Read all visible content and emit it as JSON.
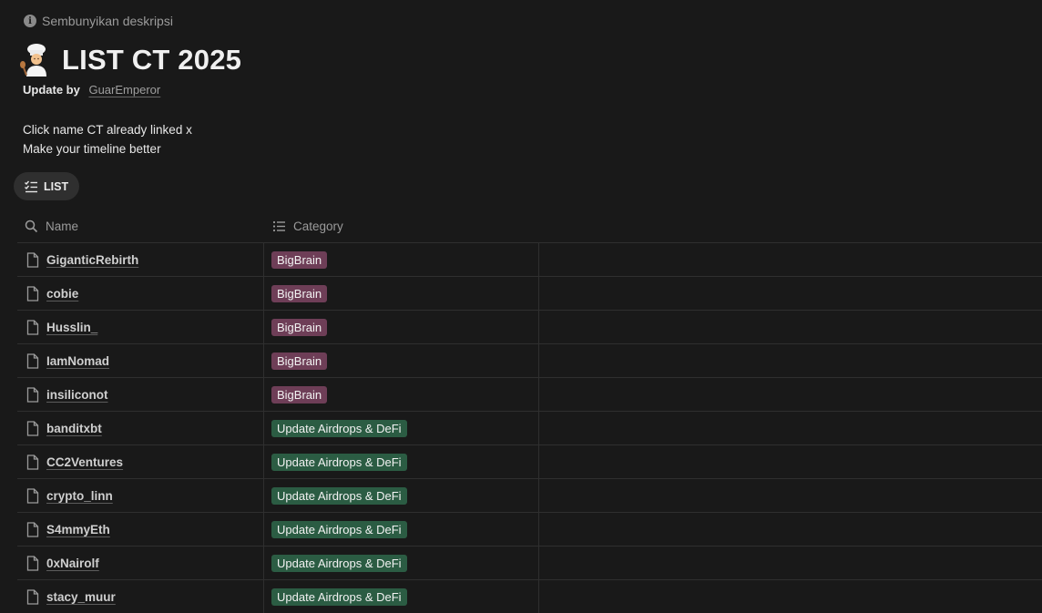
{
  "header": {
    "hide_description": "Sembunyikan deskripsi",
    "title": "LIST CT 2025",
    "update_by_label": "Update by",
    "update_by_author": "GuarEmperor",
    "description_lines": [
      "Click name CT already linked x",
      "Make your timeline better"
    ]
  },
  "view": {
    "tab_label": "LIST"
  },
  "table": {
    "columns": {
      "name": "Name",
      "category": "Category"
    },
    "rows": [
      {
        "name": "GiganticRebirth",
        "category": "BigBrain"
      },
      {
        "name": "cobie",
        "category": "BigBrain"
      },
      {
        "name": "Husslin_",
        "category": "BigBrain"
      },
      {
        "name": "IamNomad",
        "category": "BigBrain"
      },
      {
        "name": "insiliconot",
        "category": "BigBrain"
      },
      {
        "name": "banditxbt",
        "category": "Update Airdrops & DeFi"
      },
      {
        "name": "CC2Ventures",
        "category": "Update Airdrops & DeFi"
      },
      {
        "name": "crypto_linn",
        "category": "Update Airdrops & DeFi"
      },
      {
        "name": "S4mmyEth",
        "category": "Update Airdrops & DeFi"
      },
      {
        "name": "0xNairolf",
        "category": "Update Airdrops & DeFi"
      },
      {
        "name": "stacy_muur",
        "category": "Update Airdrops & DeFi"
      }
    ]
  },
  "colors": {
    "background": "#191919",
    "tag_bigbrain": "#6e3e57",
    "tag_airdrops": "#2b5c43"
  },
  "icons": {
    "hide_description": "info-icon",
    "title": "cook-emoji-icon",
    "view_tab": "checklist-icon",
    "name_column": "search-icon",
    "category_column": "list-icon",
    "row": "page-icon"
  }
}
